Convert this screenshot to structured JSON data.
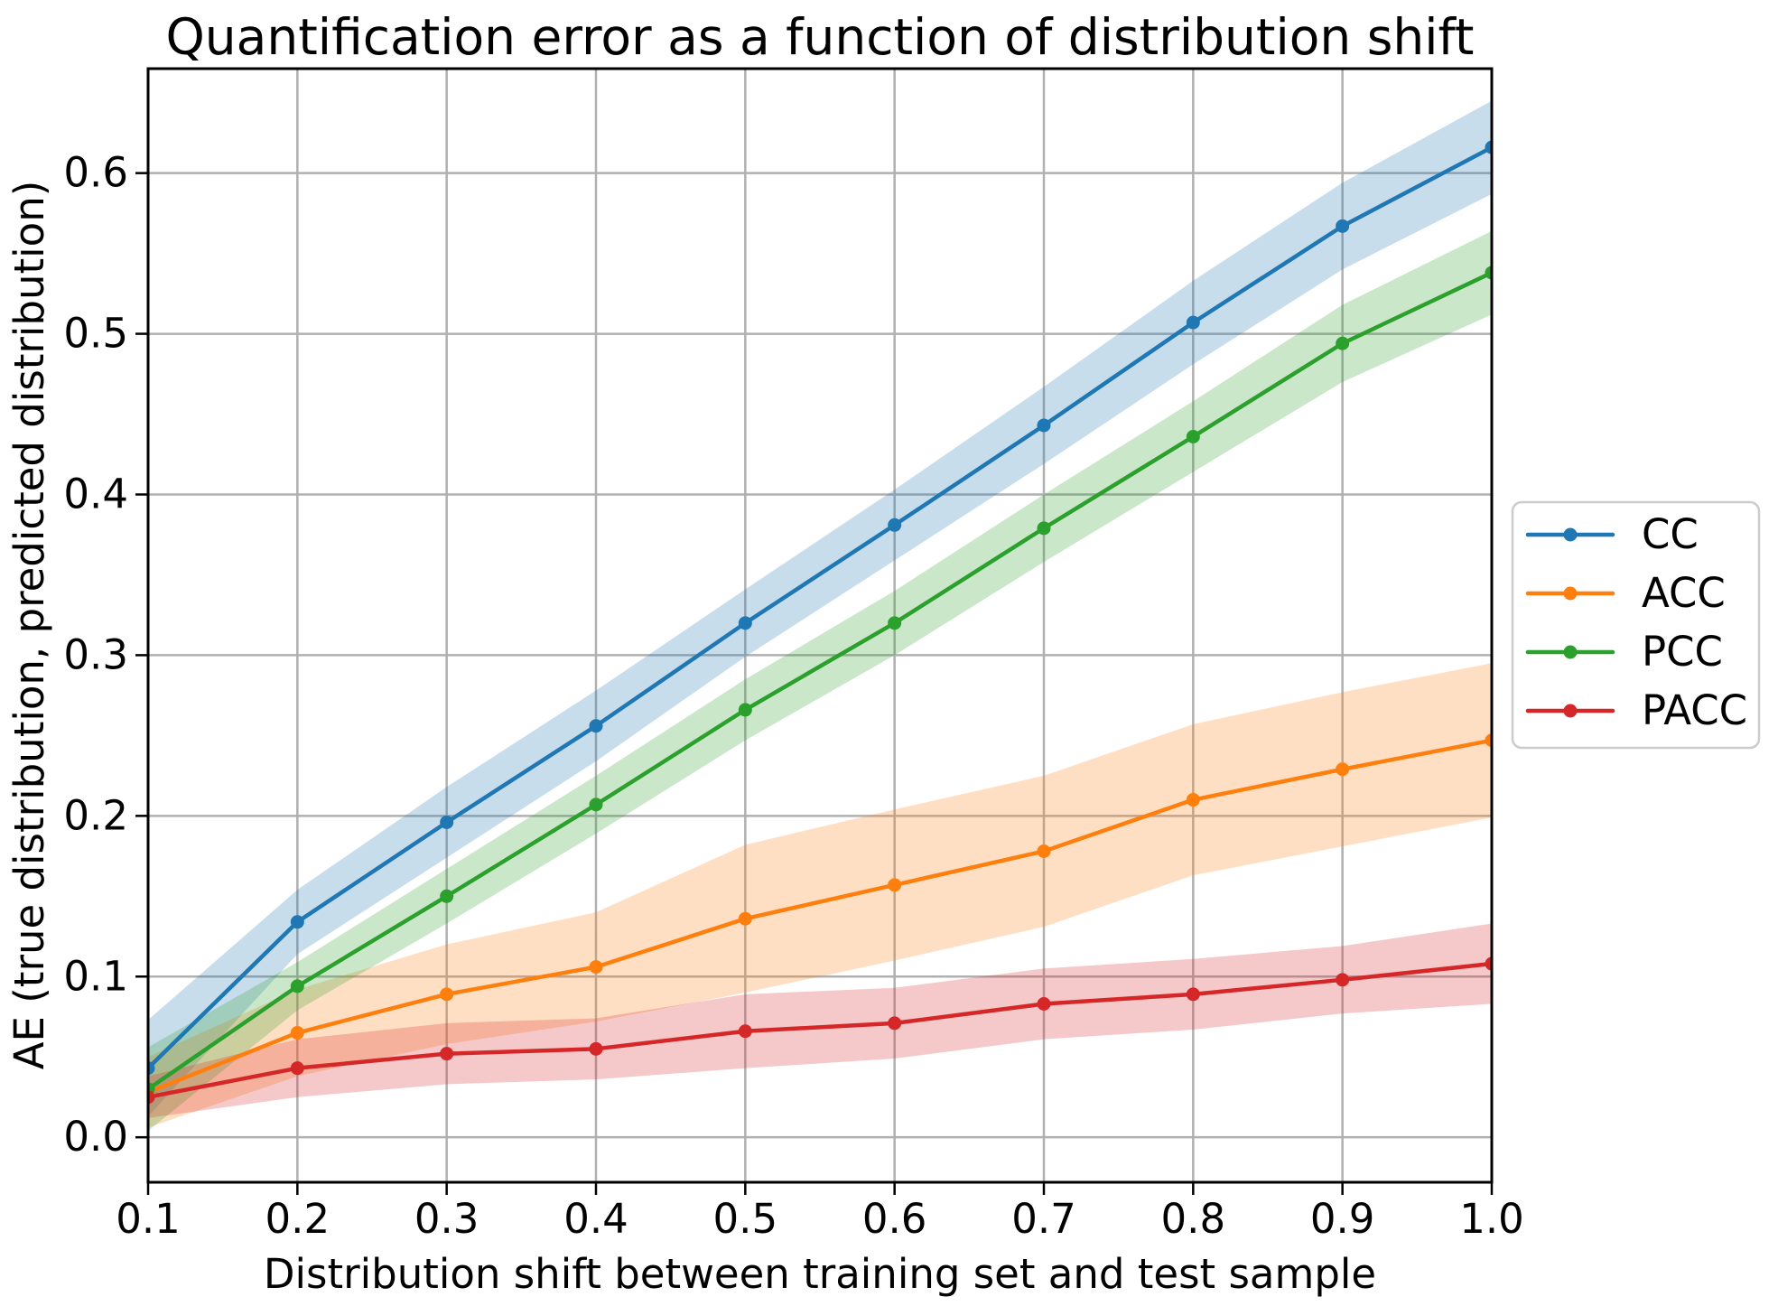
{
  "chart_data": {
    "type": "line",
    "title": "Quantification error as a function of distribution shift",
    "xlabel": "Distribution shift between training set and test sample",
    "ylabel": "AE (true distribution, predicted distribution)",
    "x": [
      0.1,
      0.2,
      0.3,
      0.4,
      0.5,
      0.6,
      0.7,
      0.8,
      0.9,
      1.0
    ],
    "series": [
      {
        "name": "CC",
        "color": "#1f77b4",
        "values": [
          0.043,
          0.134,
          0.196,
          0.256,
          0.32,
          0.381,
          0.443,
          0.507,
          0.567,
          0.616
        ],
        "band_halfwidth": [
          0.03,
          0.02,
          0.022,
          0.022,
          0.021,
          0.022,
          0.024,
          0.026,
          0.027,
          0.029
        ]
      },
      {
        "name": "ACC",
        "color": "#ff7f0e",
        "values": [
          0.028,
          0.065,
          0.089,
          0.106,
          0.136,
          0.157,
          0.178,
          0.21,
          0.229,
          0.247
        ],
        "band_halfwidth": [
          0.022,
          0.027,
          0.031,
          0.034,
          0.046,
          0.047,
          0.047,
          0.047,
          0.048,
          0.048
        ]
      },
      {
        "name": "PCC",
        "color": "#2ca02c",
        "values": [
          0.03,
          0.094,
          0.15,
          0.207,
          0.266,
          0.32,
          0.379,
          0.436,
          0.494,
          0.538
        ],
        "band_halfwidth": [
          0.026,
          0.015,
          0.017,
          0.018,
          0.019,
          0.02,
          0.021,
          0.022,
          0.024,
          0.026
        ]
      },
      {
        "name": "PACC",
        "color": "#d62728",
        "values": [
          0.025,
          0.043,
          0.052,
          0.055,
          0.066,
          0.071,
          0.083,
          0.089,
          0.098,
          0.108
        ],
        "band_halfwidth": [
          0.013,
          0.018,
          0.019,
          0.019,
          0.023,
          0.022,
          0.022,
          0.022,
          0.021,
          0.025
        ]
      }
    ],
    "xlim": [
      0.1,
      1.0
    ],
    "ylim": [
      -0.028,
      0.665
    ],
    "xticks": {
      "values": [
        0.1,
        0.2,
        0.3,
        0.4,
        0.5,
        0.6,
        0.7,
        0.8,
        0.9,
        1.0
      ],
      "labels": [
        "0.1",
        "0.2",
        "0.3",
        "0.4",
        "0.5",
        "0.6",
        "0.7",
        "0.8",
        "0.9",
        "1.0"
      ]
    },
    "yticks": {
      "values": [
        0.0,
        0.1,
        0.2,
        0.3,
        0.4,
        0.5,
        0.6
      ],
      "labels": [
        "0.0",
        "0.1",
        "0.2",
        "0.3",
        "0.4",
        "0.5",
        "0.6"
      ]
    },
    "grid": true,
    "band_alpha": 0.25,
    "legend_position": "outside-right",
    "legend_labels": [
      "CC",
      "ACC",
      "PCC",
      "PACC"
    ],
    "colors": {
      "grid": "#b0b0b0",
      "spine": "#000000",
      "legend_border": "#cccccc",
      "background": "#ffffff"
    }
  }
}
